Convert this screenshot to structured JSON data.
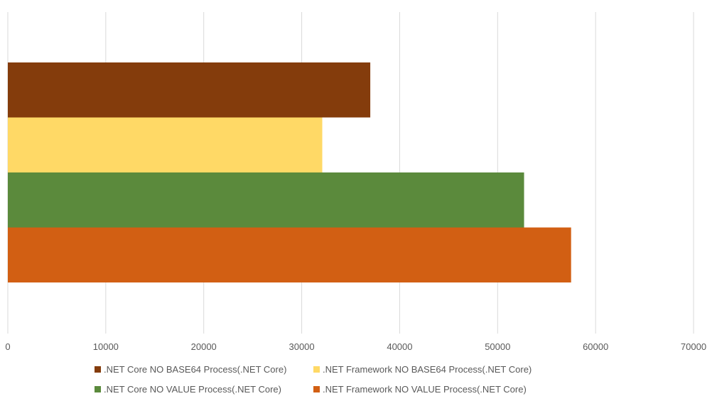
{
  "chart_data": {
    "type": "bar",
    "orientation": "horizontal",
    "title": "",
    "xlabel": "",
    "ylabel": "",
    "xlim": [
      0,
      70000
    ],
    "x_ticks": [
      "0",
      "10000",
      "20000",
      "30000",
      "40000",
      "50000",
      "60000",
      "70000"
    ],
    "grid": "vertical",
    "legend_position": "bottom",
    "series": [
      {
        "name": ".NET Core NO BASE64 Process(.NET Core)",
        "color": "#843C0C",
        "values": [
          37000
        ]
      },
      {
        "name": ".NET Framework NO BASE64 Process(.NET Core)",
        "color": "#FFD966",
        "values": [
          32100
        ]
      },
      {
        "name": ".NET Core NO VALUE Process(.NET Core)",
        "color": "#5B8A3C",
        "values": [
          52700
        ]
      },
      {
        "name": ".NET Framework NO VALUE Process(.NET Core)",
        "color": "#D25F13",
        "values": [
          57500
        ]
      }
    ]
  }
}
